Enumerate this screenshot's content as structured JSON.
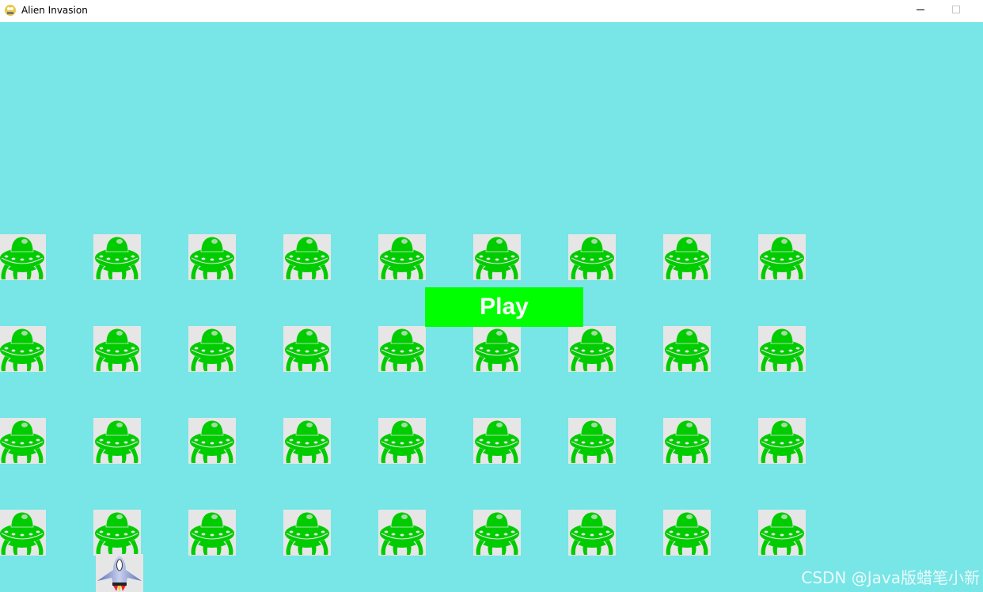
{
  "window": {
    "title": "Alien Invasion"
  },
  "game": {
    "background_color": "#78e5e6",
    "play_button": {
      "label": "Play",
      "color": "#00ff00"
    },
    "alien_fleet": {
      "rows": 4,
      "columns": 9,
      "color": "#00cc00"
    },
    "watermark": "CSDN @Java版蜡笔小新"
  }
}
